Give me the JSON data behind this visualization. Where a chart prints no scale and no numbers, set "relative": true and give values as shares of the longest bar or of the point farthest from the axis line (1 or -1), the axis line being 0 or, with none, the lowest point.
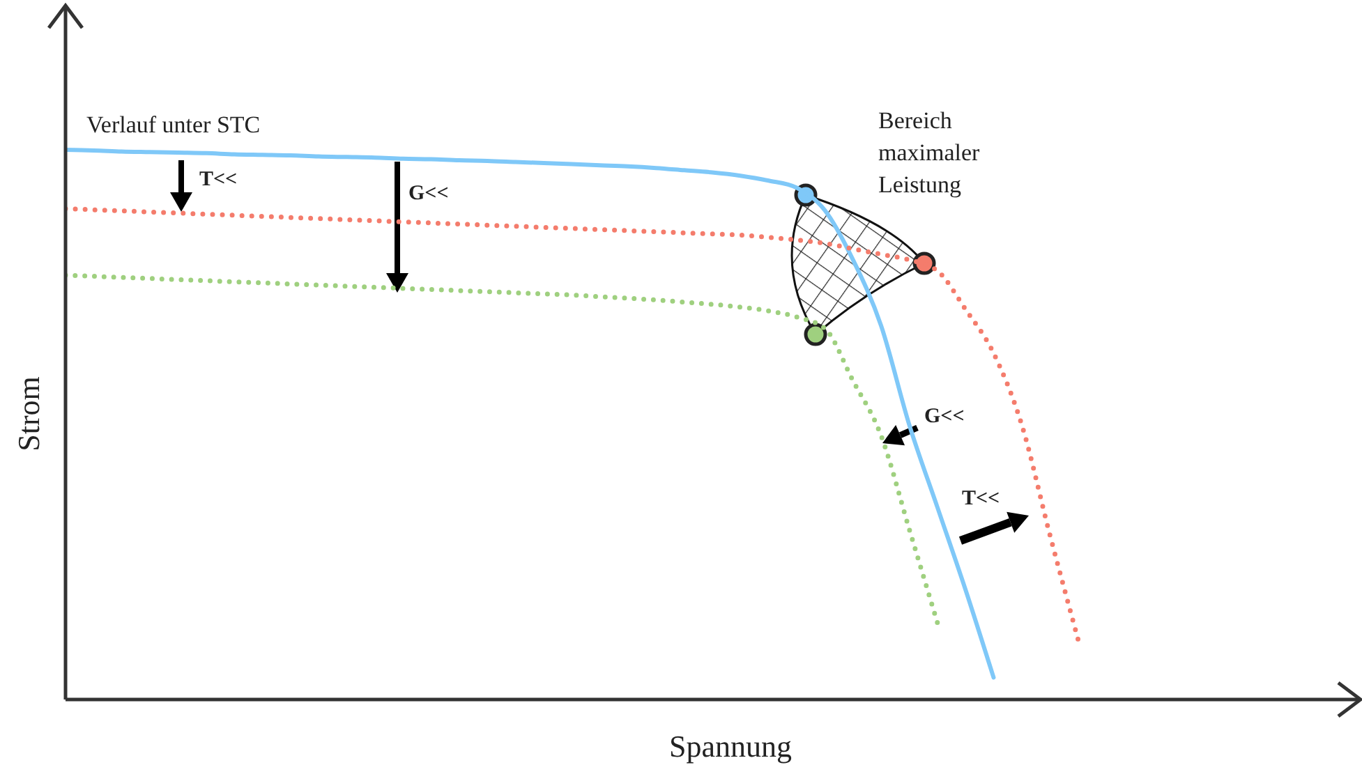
{
  "chart_data": {
    "type": "line",
    "relative": true,
    "xlabel": "Spannung",
    "ylabel": "Strom",
    "categories": [
      null,
      null,
      null,
      null,
      null,
      null,
      null,
      null,
      null,
      null,
      null,
      null,
      null,
      null,
      null,
      null,
      null,
      null,
      null,
      null,
      null,
      null,
      null,
      null,
      null,
      null,
      null,
      null,
      null,
      null,
      null,
      null,
      null,
      null,
      null,
      null,
      null,
      null,
      null,
      null,
      null,
      null,
      null,
      null,
      null,
      null,
      null
    ],
    "series": [
      {
        "color": "#7fc8f8",
        "line_style": "solid",
        "values": [
          1.0,
          0.999,
          0.997,
          0.996,
          0.995,
          0.994,
          0.992,
          0.991,
          0.99,
          0.988,
          0.987,
          0.986,
          0.984,
          0.983,
          0.981,
          0.98,
          0.978,
          0.976,
          0.974,
          0.972,
          0.97,
          0.967,
          0.963,
          0.959,
          0.953,
          0.944,
          0.931,
          0.89,
          0.8,
          0.68,
          0.5,
          0.35,
          0.2,
          0.04,
          null,
          null,
          null,
          null,
          null,
          null,
          null,
          null,
          null,
          null,
          null,
          null,
          null
        ]
      },
      {
        "color": "#f47c6c",
        "line_style": "dotted",
        "values": [
          0.893,
          0.891,
          0.889,
          0.887,
          0.885,
          0.883,
          0.881,
          0.879,
          0.877,
          0.875,
          0.873,
          0.871,
          0.869,
          0.867,
          0.865,
          0.863,
          0.861,
          0.859,
          0.857,
          0.855,
          0.853,
          0.851,
          0.849,
          0.847,
          0.845,
          0.841,
          0.836,
          0.83,
          0.82,
          0.81,
          0.8,
          0.78,
          0.71,
          0.63,
          0.5,
          0.3,
          0.11,
          null,
          null,
          null,
          null,
          null,
          null,
          null,
          null,
          null,
          null
        ]
      },
      {
        "color": "#9fd07f",
        "line_style": "dotted",
        "values": [
          0.772,
          0.77,
          0.768,
          0.766,
          0.764,
          0.762,
          0.76,
          0.758,
          0.756,
          0.754,
          0.752,
          0.75,
          0.748,
          0.746,
          0.744,
          0.742,
          0.74,
          0.738,
          0.736,
          0.733,
          0.73,
          0.727,
          0.723,
          0.719,
          0.714,
          0.707,
          0.696,
          0.675,
          0.58,
          0.48,
          0.31,
          0.14,
          null,
          null,
          null,
          null,
          null,
          null,
          null,
          null,
          null,
          null,
          null,
          null,
          null,
          null,
          null
        ]
      }
    ],
    "annotations": [
      "Verlauf unter STC",
      "T<<",
      "G<<",
      "Bereich maximaler Leistung",
      "G<<",
      "T<<"
    ],
    "marker": "none",
    "grid": false
  }
}
